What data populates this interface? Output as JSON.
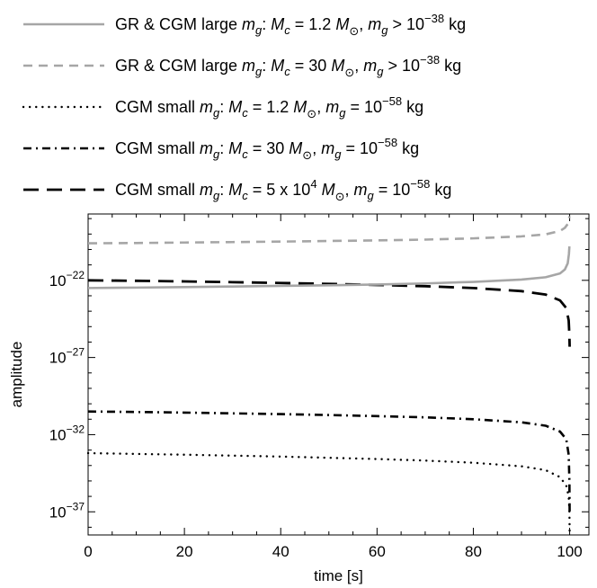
{
  "chart_data": {
    "type": "line",
    "xlabel": "time [s]",
    "ylabel": "amplitude",
    "xlim": [
      0,
      104
    ],
    "ylim_log10": [
      -38.5,
      -17.7
    ],
    "y_scale": "log",
    "x_ticks": [
      0,
      20,
      40,
      60,
      80,
      100
    ],
    "x_tick_labels": [
      "0",
      "20",
      "40",
      "60",
      "80",
      "100"
    ],
    "y_ticks_exponent": [
      -22,
      -27,
      -32,
      -37
    ],
    "y_tick_base": "10",
    "y_tick_exponent_labels": [
      "−22",
      "−27",
      "−32",
      "−37"
    ],
    "legend_position": "top",
    "series": [
      {
        "name": "GR & CGM large m_g: M_c = 1.2 M_⊙, m_g > 10^−38 kg",
        "legend": [
          [
            "GR & CGM large ",
            "n"
          ],
          [
            "m",
            "i"
          ],
          [
            "g",
            "isub"
          ],
          [
            ": ",
            "n"
          ],
          [
            "M",
            "i"
          ],
          [
            "c",
            "isub"
          ],
          [
            " = 1.2 ",
            "n"
          ],
          [
            "M",
            "i"
          ],
          [
            "⊙",
            "sub"
          ],
          [
            ", ",
            "n"
          ],
          [
            "m",
            "i"
          ],
          [
            "g",
            "isub"
          ],
          [
            " > 10",
            "n"
          ],
          [
            "−38",
            "sup"
          ],
          [
            " kg",
            "n"
          ]
        ],
        "color": "#a6a6a6",
        "style": "solid",
        "x": [
          0,
          10,
          20,
          30,
          40,
          50,
          60,
          70,
          80,
          90,
          95,
          98,
          99,
          99.6,
          99.85,
          99.95
        ],
        "log10_y": [
          -22.5,
          -22.47,
          -22.44,
          -22.4,
          -22.36,
          -22.32,
          -22.27,
          -22.2,
          -22.1,
          -21.95,
          -21.8,
          -21.55,
          -21.3,
          -20.9,
          -20.3,
          -19.8
        ]
      },
      {
        "name": "GR & CGM large m_g: M_c = 30 M_⊙, m_g > 10^−38 kg",
        "legend": [
          [
            "GR & CGM large ",
            "n"
          ],
          [
            "m",
            "i"
          ],
          [
            "g",
            "isub"
          ],
          [
            ": ",
            "n"
          ],
          [
            "M",
            "i"
          ],
          [
            "c",
            "isub"
          ],
          [
            " = 30 ",
            "n"
          ],
          [
            "M",
            "i"
          ],
          [
            "⊙",
            "sub"
          ],
          [
            ", ",
            "n"
          ],
          [
            "m",
            "i"
          ],
          [
            "g",
            "isub"
          ],
          [
            " > 10",
            "n"
          ],
          [
            "−38",
            "sup"
          ],
          [
            " kg",
            "n"
          ]
        ],
        "color": "#a6a6a6",
        "style": "dashed",
        "x": [
          0,
          10,
          20,
          30,
          40,
          50,
          60,
          70,
          80,
          90,
          95,
          98,
          99,
          99.6,
          99.85,
          99.95
        ],
        "log10_y": [
          -19.6,
          -19.58,
          -19.55,
          -19.52,
          -19.49,
          -19.45,
          -19.41,
          -19.36,
          -19.28,
          -19.15,
          -19.02,
          -18.8,
          -18.6,
          -18.35,
          -18.05,
          -17.85
        ]
      },
      {
        "name": "CGM small m_g: M_c = 1.2 M_⊙, m_g = 10^−58 kg",
        "legend": [
          [
            "CGM small ",
            "n"
          ],
          [
            "m",
            "i"
          ],
          [
            "g",
            "isub"
          ],
          [
            ": ",
            "n"
          ],
          [
            "M",
            "i"
          ],
          [
            "c",
            "isub"
          ],
          [
            " = 1.2 ",
            "n"
          ],
          [
            "M",
            "i"
          ],
          [
            "⊙",
            "sub"
          ],
          [
            ", ",
            "n"
          ],
          [
            "m",
            "i"
          ],
          [
            "g",
            "isub"
          ],
          [
            " = 10",
            "n"
          ],
          [
            "−58",
            "sup"
          ],
          [
            " kg",
            "n"
          ]
        ],
        "color": "#000000",
        "style": "dotted",
        "x": [
          0,
          10,
          20,
          30,
          40,
          50,
          60,
          70,
          80,
          90,
          95,
          98,
          99.3,
          99.8,
          99.95,
          100
        ],
        "log10_y": [
          -33.2,
          -33.25,
          -33.3,
          -33.36,
          -33.42,
          -33.5,
          -33.58,
          -33.68,
          -33.82,
          -34.05,
          -34.3,
          -34.75,
          -35.3,
          -36.0,
          -37.0,
          -38.3
        ]
      },
      {
        "name": "CGM small m_g: M_c = 30 M_⊙, m_g = 10^−58 kg",
        "legend": [
          [
            "CGM small ",
            "n"
          ],
          [
            "m",
            "i"
          ],
          [
            "g",
            "isub"
          ],
          [
            ": ",
            "n"
          ],
          [
            "M",
            "i"
          ],
          [
            "c",
            "isub"
          ],
          [
            " = 30 ",
            "n"
          ],
          [
            "M",
            "i"
          ],
          [
            "⊙",
            "sub"
          ],
          [
            ", ",
            "n"
          ],
          [
            "m",
            "i"
          ],
          [
            "g",
            "isub"
          ],
          [
            " = 10",
            "n"
          ],
          [
            "−58",
            "sup"
          ],
          [
            " kg",
            "n"
          ]
        ],
        "color": "#000000",
        "style": "dashdot",
        "x": [
          0,
          10,
          20,
          30,
          40,
          50,
          60,
          70,
          80,
          90,
          95,
          98,
          99.3,
          99.8,
          99.95,
          100
        ],
        "log10_y": [
          -30.5,
          -30.53,
          -30.57,
          -30.62,
          -30.67,
          -30.73,
          -30.8,
          -30.88,
          -31.0,
          -31.2,
          -31.42,
          -31.8,
          -32.3,
          -33.3,
          -35.0,
          -37.2
        ]
      },
      {
        "name": "CGM small m_g: M_c = 5 x 10^4 M_⊙, m_g = 10^−58 kg",
        "legend": [
          [
            "CGM small ",
            "n"
          ],
          [
            "m",
            "i"
          ],
          [
            "g",
            "isub"
          ],
          [
            ": ",
            "n"
          ],
          [
            "M",
            "i"
          ],
          [
            "c",
            "isub"
          ],
          [
            " = 5 x 10",
            "n"
          ],
          [
            "4",
            "sup"
          ],
          [
            " ",
            "n"
          ],
          [
            "M",
            "i"
          ],
          [
            "⊙",
            "sub"
          ],
          [
            ", ",
            "n"
          ],
          [
            "m",
            "i"
          ],
          [
            "g",
            "isub"
          ],
          [
            " = 10",
            "n"
          ],
          [
            "−58",
            "sup"
          ],
          [
            " kg",
            "n"
          ]
        ],
        "color": "#000000",
        "style": "dashed-long",
        "x": [
          0,
          10,
          20,
          30,
          40,
          50,
          60,
          70,
          80,
          90,
          95,
          98,
          99.3,
          99.8,
          99.95,
          100
        ],
        "log10_y": [
          -22.0,
          -22.03,
          -22.07,
          -22.12,
          -22.17,
          -22.23,
          -22.3,
          -22.38,
          -22.5,
          -22.7,
          -22.92,
          -23.3,
          -23.8,
          -24.6,
          -25.6,
          -26.3
        ]
      }
    ]
  }
}
